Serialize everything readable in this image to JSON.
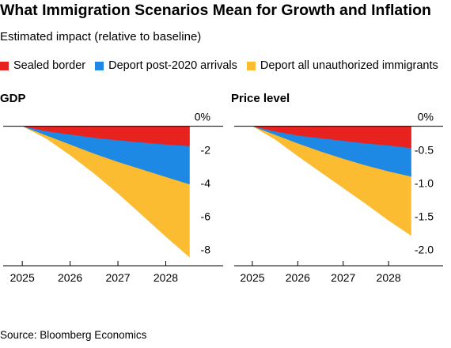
{
  "title": "What Immigration Scenarios Mean for Growth and Inflation",
  "subtitle": "Estimated impact (relative to baseline)",
  "legend": [
    {
      "label": "Sealed border",
      "color": "#e8231f"
    },
    {
      "label": "Deport post-2020 arrivals",
      "color": "#1e88e5"
    },
    {
      "label": "Deport all unauthorized immigrants",
      "color": "#fbbc31"
    }
  ],
  "source": "Source: Bloomberg Economics",
  "chart_data": [
    {
      "type": "area",
      "title": "GDP",
      "x_ticks": [
        "2025",
        "2026",
        "2027",
        "2028"
      ],
      "x": [
        2025.0,
        2025.5,
        2026.0,
        2026.5,
        2027.0,
        2027.5,
        2028.0,
        2028.5
      ],
      "y_ticks": [
        0,
        -2,
        -4,
        -6,
        -8
      ],
      "y_tick_labels": [
        "0%",
        "-2",
        "-4",
        "-6",
        "-8"
      ],
      "ylim": [
        -8.4,
        0.6
      ],
      "xlim": [
        2024.6,
        2029.2
      ],
      "series": [
        {
          "name": "Sealed border",
          "color": "#e8231f",
          "values": [
            0,
            -0.3,
            -0.5,
            -0.7,
            -0.85,
            -0.98,
            -1.1,
            -1.2
          ]
        },
        {
          "name": "Deport post-2020 arrivals",
          "color": "#1e88e5",
          "values": [
            0,
            -0.55,
            -1.1,
            -1.65,
            -2.15,
            -2.6,
            -3.05,
            -3.5
          ]
        },
        {
          "name": "Deport all unauthorized immigrants",
          "color": "#fbbc31",
          "values": [
            0,
            -0.75,
            -1.75,
            -2.85,
            -4.05,
            -5.35,
            -6.65,
            -7.9
          ]
        }
      ]
    },
    {
      "type": "area",
      "title": "Price level",
      "x_ticks": [
        "2025",
        "2026",
        "2027",
        "2028"
      ],
      "x": [
        2025.0,
        2025.5,
        2026.0,
        2026.5,
        2027.0,
        2027.5,
        2028.0,
        2028.5
      ],
      "y_ticks": [
        0,
        -0.5,
        -1.0,
        -1.5,
        -2.0
      ],
      "y_tick_labels": [
        "0%",
        "-0.5",
        "-1.0",
        "-1.5",
        "-2.0"
      ],
      "ylim": [
        -2.1,
        0.15
      ],
      "xlim": [
        2024.6,
        2029.2
      ],
      "series": [
        {
          "name": "Sealed border",
          "color": "#e8231f",
          "values": [
            0,
            -0.08,
            -0.14,
            -0.18,
            -0.22,
            -0.26,
            -0.29,
            -0.33
          ]
        },
        {
          "name": "Deport post-2020 arrivals",
          "color": "#1e88e5",
          "values": [
            0,
            -0.13,
            -0.26,
            -0.38,
            -0.49,
            -0.59,
            -0.68,
            -0.76
          ]
        },
        {
          "name": "Deport all unauthorized immigrants",
          "color": "#fbbc31",
          "values": [
            0,
            -0.2,
            -0.45,
            -0.69,
            -0.93,
            -1.17,
            -1.42,
            -1.65
          ]
        }
      ]
    }
  ]
}
